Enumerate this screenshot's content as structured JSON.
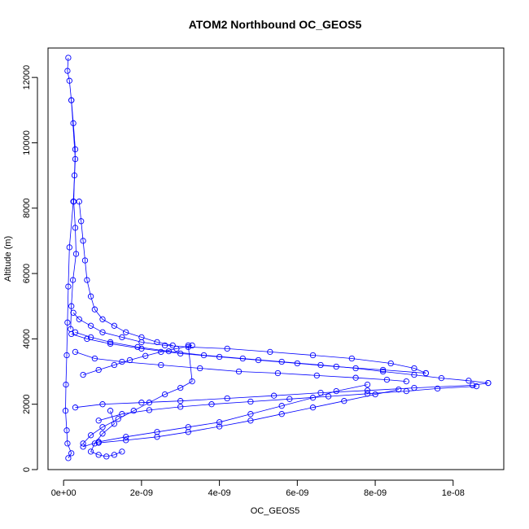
{
  "chart_data": {
    "type": "scatter",
    "title": "ATOM2 Northbound OC_GEOS5",
    "xlabel": "OC_GEOS5",
    "ylabel": "Altitude (m)",
    "xlim": [
      -4e-10,
      1.13e-08
    ],
    "ylim": [
      0,
      12900
    ],
    "x_ticks": [
      0,
      2e-09,
      4e-09,
      6e-09,
      8e-09,
      1e-08
    ],
    "x_tick_labels": [
      "0e+00",
      "2e-09",
      "4e-09",
      "6e-09",
      "8e-09",
      "1e-08"
    ],
    "y_ticks": [
      0,
      2000,
      4000,
      6000,
      8000,
      10000,
      12000
    ],
    "y_tick_labels": [
      "0",
      "2000",
      "4000",
      "6000",
      "8000",
      "10000",
      "12000"
    ],
    "grid": false,
    "marker": "open-circle",
    "line": true,
    "color": "#0000ff",
    "series": [
      {
        "x": [
          1.2e-10,
          1e-10,
          1.5e-10,
          2e-10,
          3e-10,
          2.5e-10,
          1.5e-10,
          1.2e-10,
          1e-10,
          8e-11,
          6e-11,
          5e-11,
          8e-11,
          1e-10,
          2e-10,
          1.2e-10
        ],
        "y": [
          12600,
          12200,
          11900,
          11300,
          9500,
          8200,
          6800,
          5600,
          4500,
          3500,
          2600,
          1800,
          1200,
          800,
          500,
          350
        ]
      },
      {
        "x": [
          2.5e-10,
          4e-10,
          7e-10,
          1e-09,
          1.5e-09,
          2e-09,
          2.6e-09,
          3.2e-09,
          4.2e-09,
          5.3e-09,
          6.4e-09,
          7.4e-09,
          8.4e-09,
          9e-09,
          9.3e-09
        ],
        "y": [
          4800,
          4600,
          4400,
          4200,
          4050,
          3900,
          3800,
          3750,
          3700,
          3600,
          3500,
          3400,
          3250,
          3100,
          2950
        ]
      },
      {
        "x": [
          9.3e-09,
          8.2e-09,
          7e-09,
          6e-09,
          5e-09,
          4e-09,
          3e-09,
          2e-09,
          1.2e-09,
          6e-10,
          2e-10
        ],
        "y": [
          2950,
          3050,
          3150,
          3250,
          3350,
          3450,
          3550,
          3700,
          3850,
          4000,
          4150
        ]
      },
      {
        "x": [
          3e-10,
          8e-10,
          1.5e-09,
          2.5e-09,
          3.5e-09,
          4.5e-09,
          5.5e-09,
          6.5e-09,
          7.5e-09,
          8.3e-09,
          8.8e-09
        ],
        "y": [
          3600,
          3400,
          3300,
          3200,
          3100,
          3000,
          2950,
          2880,
          2810,
          2750,
          2700
        ]
      },
      {
        "x": [
          1.09e-08,
          1.04e-08,
          9.7e-09,
          9e-09,
          8.2e-09,
          7.5e-09,
          6.6e-09,
          5.6e-09,
          4.6e-09,
          3.6e-09,
          2.7e-09,
          1.9e-09,
          1.2e-09,
          7e-10,
          3e-10
        ],
        "y": [
          2650,
          2720,
          2800,
          2900,
          3000,
          3100,
          3200,
          3300,
          3400,
          3500,
          3620,
          3750,
          3900,
          4050,
          4200
        ]
      },
      {
        "x": [
          3e-10,
          1e-09,
          2e-09,
          3e-09,
          4.2e-09,
          5.4e-09,
          6.6e-09,
          7.8e-09,
          9e-09,
          1.05e-08,
          1.09e-08
        ],
        "y": [
          1900,
          2000,
          2050,
          2100,
          2180,
          2260,
          2350,
          2420,
          2500,
          2580,
          2650
        ]
      },
      {
        "x": [
          1.06e-08,
          9.6e-09,
          8.8e-09,
          7.8e-09,
          6.8e-09,
          5.8e-09,
          4.8e-09,
          3.8e-09,
          3e-09,
          2.2e-09,
          1.5e-09,
          9e-10
        ],
        "y": [
          2550,
          2480,
          2400,
          2320,
          2240,
          2160,
          2080,
          2000,
          1920,
          1820,
          1700,
          1500
        ]
      },
      {
        "x": [
          7.8e-09,
          7e-09,
          6.4e-09,
          5.6e-09,
          4.8e-09,
          4e-09,
          3.2e-09,
          2.4e-09,
          1.6e-09,
          9e-10,
          5e-10
        ],
        "y": [
          2600,
          2400,
          2200,
          1950,
          1700,
          1450,
          1300,
          1150,
          1000,
          850,
          700
        ]
      },
      {
        "x": [
          8.6e-09,
          8e-09,
          7.2e-09,
          6.4e-09,
          5.6e-09,
          4.8e-09,
          4e-09,
          3.2e-09,
          2.4e-09,
          1.6e-09,
          9e-10
        ],
        "y": [
          2450,
          2300,
          2100,
          1900,
          1700,
          1500,
          1320,
          1150,
          1000,
          900,
          820
        ]
      },
      {
        "x": [
          3.2e-09,
          3.3e-09,
          3e-09,
          2.6e-09,
          2.2e-09,
          1.8e-09,
          1.4e-09,
          1e-09,
          7e-10,
          5e-10
        ],
        "y": [
          3800,
          2700,
          2500,
          2300,
          2050,
          1800,
          1550,
          1300,
          1050,
          800
        ]
      },
      {
        "x": [
          5e-10,
          9e-10,
          1.3e-09,
          1.7e-09,
          2.1e-09,
          2.5e-09,
          2.9e-09,
          3.3e-09
        ],
        "y": [
          2900,
          3050,
          3200,
          3350,
          3480,
          3600,
          3700,
          3800
        ]
      },
      {
        "x": [
          1.2e-09,
          1.3e-09,
          1e-09,
          8e-10,
          7e-10,
          9e-10,
          1.1e-09,
          1.3e-09,
          1.5e-09
        ],
        "y": [
          1800,
          1400,
          1100,
          800,
          550,
          450,
          400,
          450,
          550
        ]
      },
      {
        "x": [
          2e-10,
          2.5e-10,
          3e-10,
          2.8e-10,
          2.6e-10,
          3e-10,
          3.2e-10,
          2.4e-10,
          2e-10,
          1.8e-10
        ],
        "y": [
          11300,
          10600,
          9800,
          9000,
          8200,
          7400,
          6600,
          5800,
          5000,
          4300
        ]
      },
      {
        "x": [
          4e-10,
          4.5e-10,
          5e-10,
          5.5e-10,
          6e-10,
          7e-10,
          8e-10,
          1e-09,
          1.3e-09,
          1.6e-09,
          2e-09,
          2.4e-09,
          2.8e-09
        ],
        "y": [
          8200,
          7600,
          7000,
          6400,
          5800,
          5300,
          4900,
          4600,
          4400,
          4200,
          4050,
          3900,
          3800
        ]
      }
    ]
  }
}
